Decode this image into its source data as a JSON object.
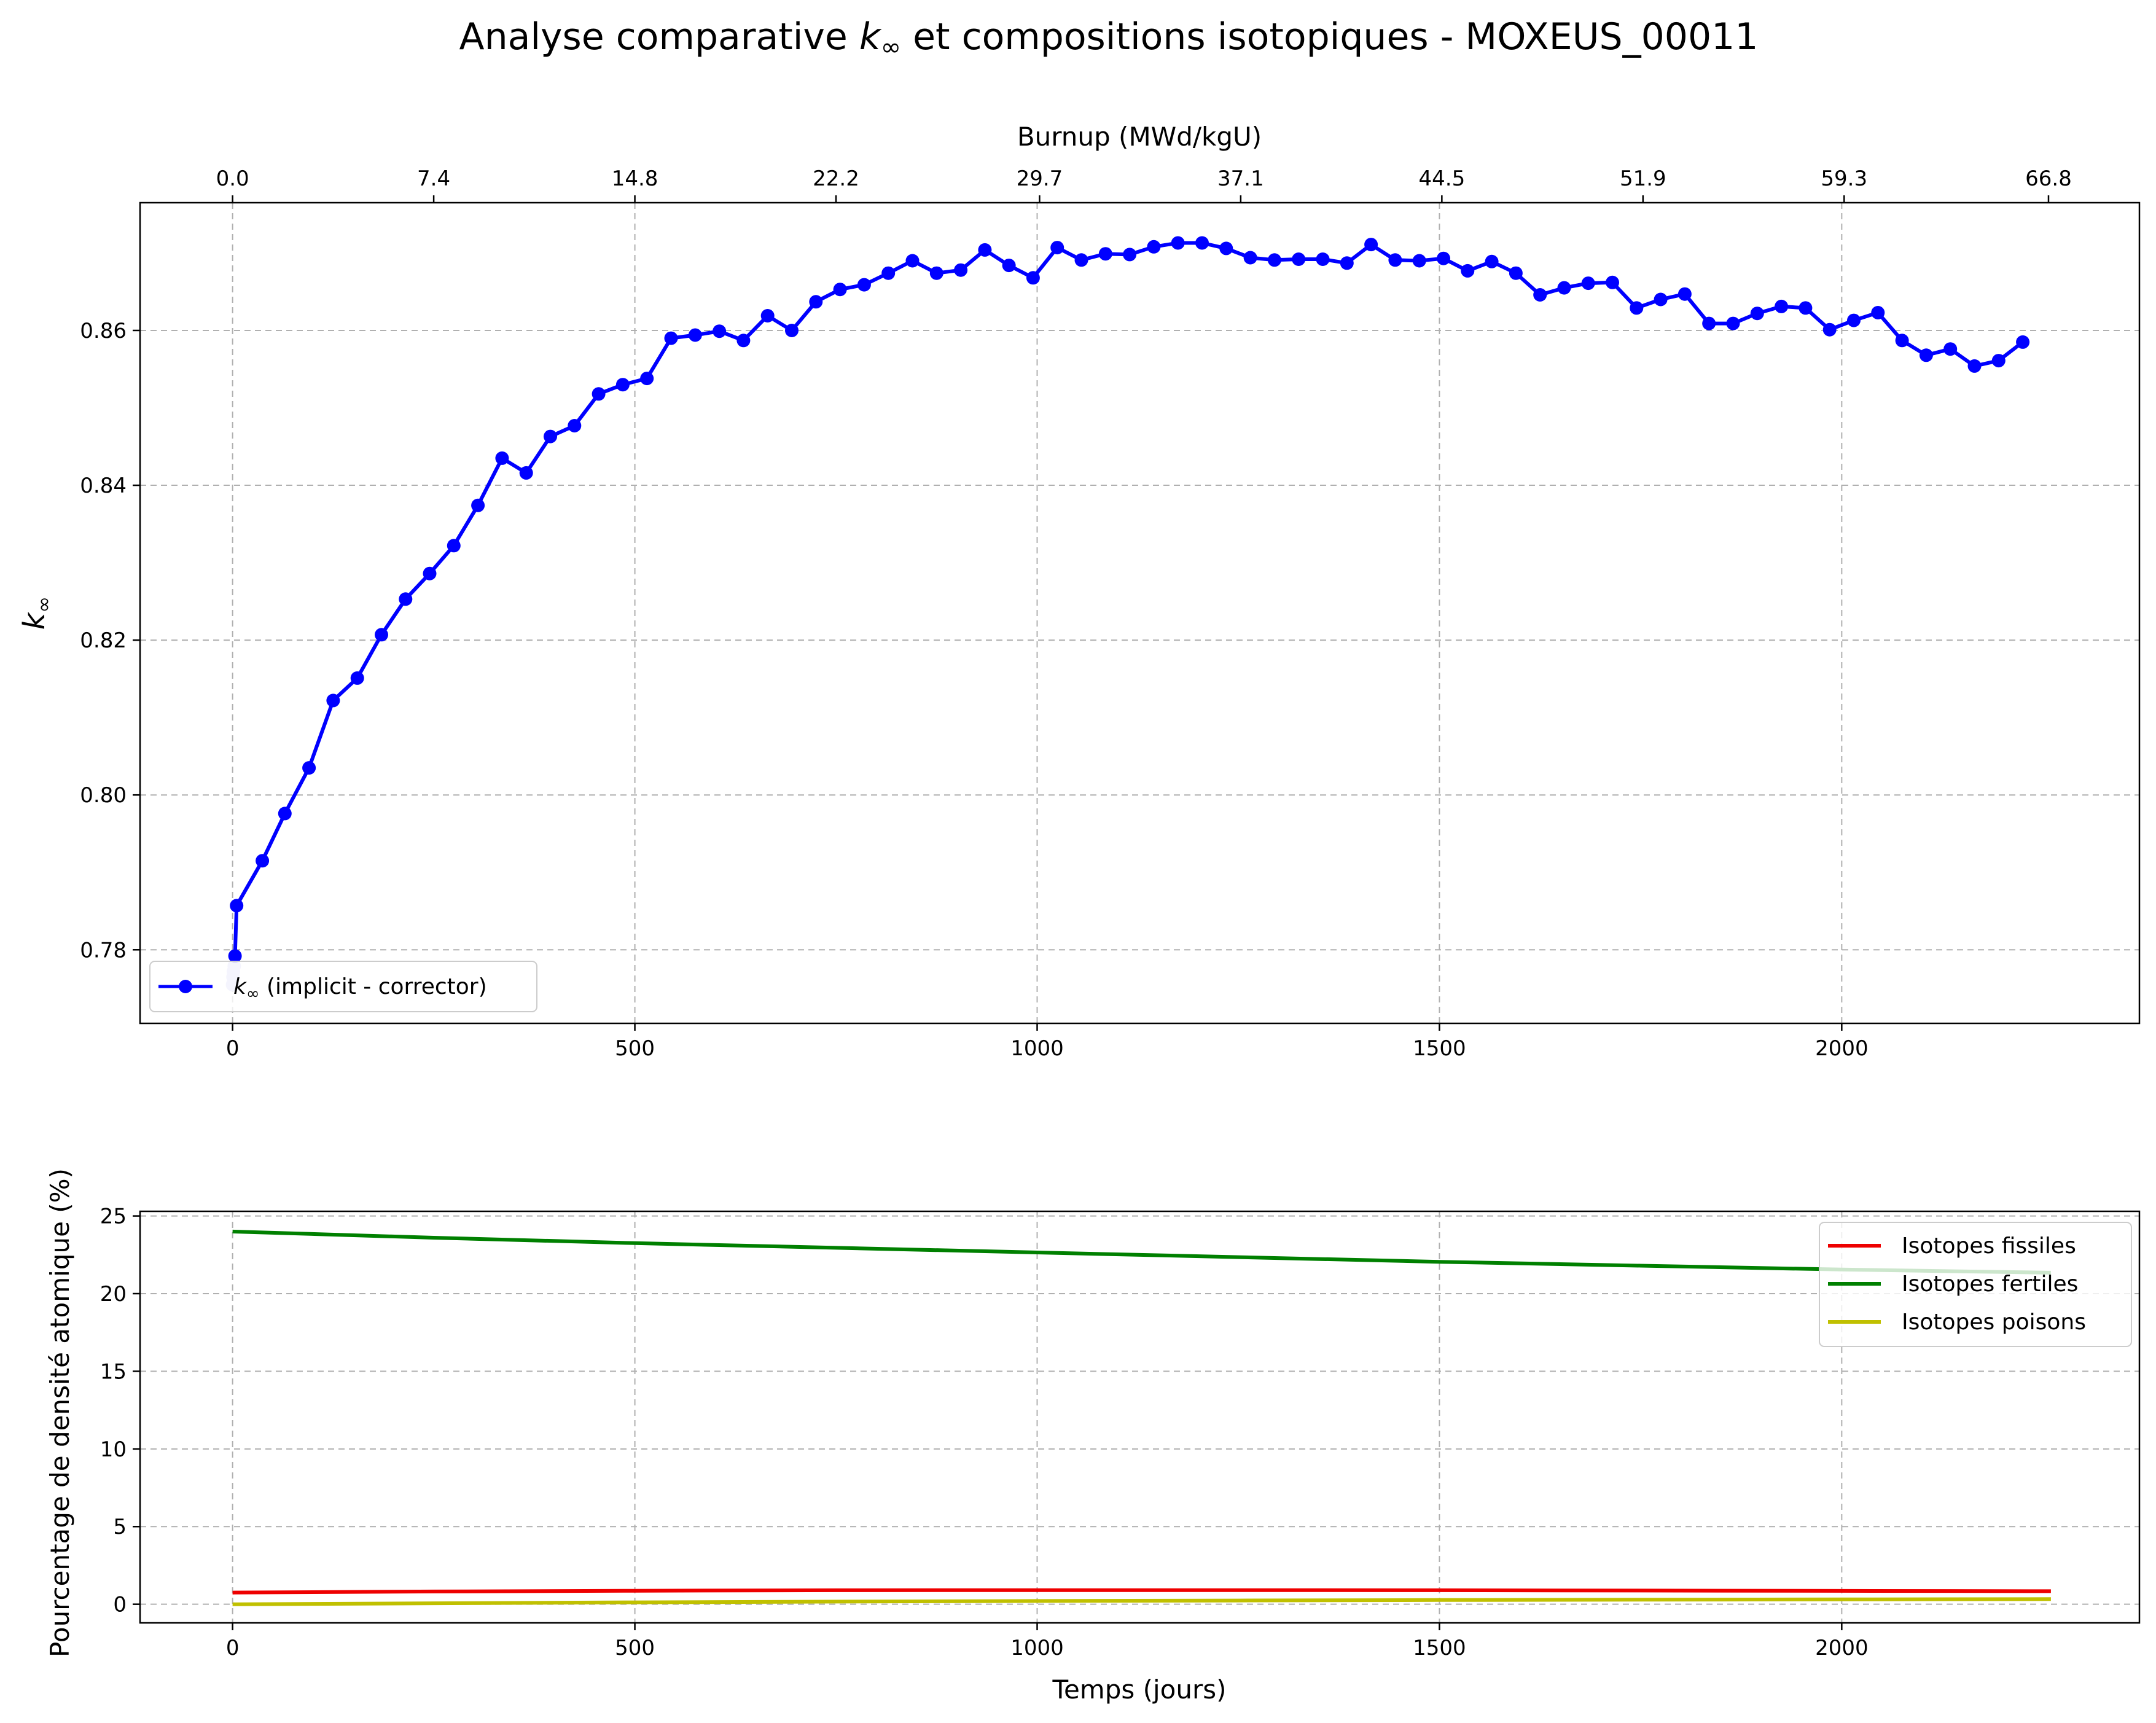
{
  "chart_data": [
    {
      "type": "line",
      "title_pre": "Analyse comparative ",
      "title_k": "k",
      "title_sub": "∞",
      "title_post": " et compositions isotopiques - MOXEUS_00011",
      "xlabel": "",
      "ylabel_k": "k",
      "ylabel_sub": "∞",
      "secondary_xlabel": "Burnup (MWd/kgU)",
      "xlim": [
        -115,
        2370
      ],
      "ylim": [
        0.7705,
        0.8765
      ],
      "xticks": [
        0,
        500,
        1000,
        1500,
        2000
      ],
      "yticks": [
        0.78,
        0.8,
        0.82,
        0.84,
        0.86
      ],
      "ytick_labels": [
        "0.78",
        "0.80",
        "0.82",
        "0.84",
        "0.86"
      ],
      "secondary_xticks": [
        "0.0",
        "7.4",
        "14.8",
        "22.2",
        "29.7",
        "37.1",
        "44.5",
        "51.9",
        "59.3",
        "66.8"
      ],
      "secondary_xticks_at_days": [
        0,
        250,
        500,
        750,
        1003,
        1253,
        1503,
        1753,
        2003,
        2257
      ],
      "grid": true,
      "legend_placement": "lower-left",
      "series": [
        {
          "name_k": "k",
          "name_sub": "∞",
          "name_post": " (implicit - corrector)",
          "color": "#0000ff",
          "marker": "circle",
          "x": [
            0,
            0.5,
            1,
            2,
            3,
            5,
            37,
            65,
            95,
            125,
            155,
            185,
            215,
            245,
            275,
            305,
            335,
            365,
            395,
            425,
            455,
            485,
            515,
            545,
            575,
            605,
            635,
            665,
            695,
            725,
            755,
            785,
            815,
            845,
            875,
            905,
            935,
            965,
            995,
            1025,
            1055,
            1085,
            1115,
            1145,
            1175,
            1205,
            1235,
            1265,
            1295,
            1325,
            1355,
            1385,
            1415,
            1445,
            1475,
            1505,
            1535,
            1565,
            1595,
            1625,
            1655,
            1685,
            1715,
            1745,
            1775,
            1805,
            1835,
            1865,
            1895,
            1925,
            1955,
            1985,
            2015,
            2045,
            2075,
            2105,
            2135,
            2165,
            2195,
            2225
          ],
          "y": [
            0.7755,
            0.7765,
            0.7772,
            0.7779,
            0.7792,
            0.7857,
            0.7915,
            0.7976,
            0.8035,
            0.8122,
            0.8151,
            0.8207,
            0.8253,
            0.8286,
            0.8322,
            0.8374,
            0.8435,
            0.8416,
            0.8463,
            0.8477,
            0.8518,
            0.853,
            0.8538,
            0.859,
            0.8594,
            0.8599,
            0.8587,
            0.8619,
            0.86,
            0.8637,
            0.8653,
            0.8659,
            0.8674,
            0.869,
            0.8674,
            0.8678,
            0.8704,
            0.8684,
            0.8668,
            0.8707,
            0.8691,
            0.8699,
            0.8698,
            0.8708,
            0.8713,
            0.8713,
            0.8706,
            0.8694,
            0.8691,
            0.8692,
            0.8692,
            0.8687,
            0.8711,
            0.8691,
            0.869,
            0.8693,
            0.8677,
            0.8689,
            0.8674,
            0.8646,
            0.8655,
            0.8661,
            0.8662,
            0.8629,
            0.864,
            0.8647,
            0.8609,
            0.8609,
            0.8622,
            0.8631,
            0.8629,
            0.8601,
            0.8613,
            0.8623,
            0.8587,
            0.8568,
            0.8576,
            0.8554,
            0.8561,
            0.8585
          ]
        }
      ]
    },
    {
      "type": "line",
      "title": "",
      "xlabel": "Temps (jours)",
      "ylabel": "Pourcentage de densité atomique (%)",
      "xlim": [
        -115,
        2370
      ],
      "ylim": [
        -1.2,
        25.3
      ],
      "xticks": [
        0,
        500,
        1000,
        1500,
        2000
      ],
      "yticks": [
        0,
        5,
        10,
        15,
        20,
        25
      ],
      "grid": true,
      "legend_placement": "upper-right",
      "series": [
        {
          "name": "Isotopes fissiles",
          "color": "#ee0000",
          "x": [
            0,
            250,
            500,
            750,
            1000,
            1250,
            1500,
            1750,
            2000,
            2260
          ],
          "y": [
            0.75,
            0.82,
            0.87,
            0.9,
            0.91,
            0.91,
            0.9,
            0.88,
            0.86,
            0.84
          ]
        },
        {
          "name": "Isotopes fertiles",
          "color": "#008000",
          "x": [
            0,
            250,
            500,
            750,
            1000,
            1250,
            1500,
            1750,
            2000,
            2260
          ],
          "y": [
            24.0,
            23.6,
            23.25,
            22.95,
            22.65,
            22.35,
            22.05,
            21.8,
            21.55,
            21.35
          ]
        },
        {
          "name": "Isotopes poisons",
          "color": "#c0c000",
          "x": [
            0,
            250,
            500,
            750,
            1000,
            1250,
            1500,
            1750,
            2000,
            2260
          ],
          "y": [
            0.0,
            0.06,
            0.12,
            0.17,
            0.21,
            0.24,
            0.27,
            0.29,
            0.31,
            0.33
          ]
        }
      ]
    }
  ]
}
